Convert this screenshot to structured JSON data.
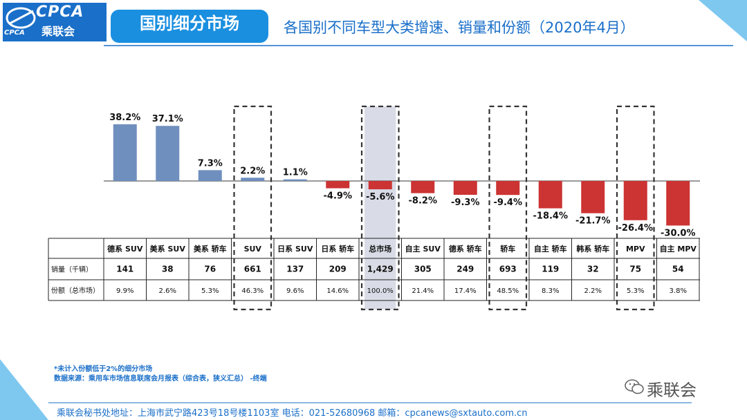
{
  "header": {
    "logo_text": "CPCA",
    "logo_cn": "乘联会",
    "logo_abbr": "CPCA",
    "section_title": "国别细分市场",
    "subtitle": "各国别不同车型大类增速、销量和份额（2020年4月）"
  },
  "chart_data": {
    "type": "bar",
    "title": "各国别不同车型大类增速、销量和份额（2020年4月）",
    "categories": [
      "德系 SUV",
      "美系 SUV",
      "美系 轿车",
      "SUV",
      "日系 SUV",
      "日系 轿车",
      "总市场",
      "自主 SUV",
      "德系 轿车",
      "轿车",
      "自主 轿车",
      "韩系 轿车",
      "MPV",
      "自主 MPV"
    ],
    "value_labels": [
      "38.2%",
      "37.1%",
      "7.3%",
      "2.2%",
      "1.1%",
      "-4.9%",
      "-5.6%",
      "-8.2%",
      "-9.3%",
      "-9.4%",
      "-18.4%",
      "-21.7%",
      "-26.4%",
      "-30.0%"
    ],
    "series": [
      {
        "values": [
          38.2,
          37.1,
          7.3,
          2.2,
          1.1,
          -4.9,
          -5.6,
          -8.2,
          -9.3,
          -9.4,
          -18.4,
          -21.7,
          -26.4,
          -30.0
        ]
      }
    ],
    "positive_color": "#6f8fbe",
    "negative_color": "#cc3333",
    "highlight_columns": [
      3,
      6,
      9,
      12
    ],
    "shaded_column": 6,
    "ylim": [
      -30,
      40
    ],
    "table": {
      "rows": [
        {
          "label": "销量（千辆）",
          "values": [
            "141",
            "38",
            "76",
            "661",
            "137",
            "209",
            "1,429",
            "305",
            "249",
            "693",
            "119",
            "32",
            "75",
            "54"
          ]
        },
        {
          "label": "份额（总市场）",
          "values": [
            "9.9%",
            "2.6%",
            "5.3%",
            "46.3%",
            "9.6%",
            "14.6%",
            "100.0%",
            "21.4%",
            "17.4%",
            "48.5%",
            "8.3%",
            "2.2%",
            "5.3%",
            "3.8%"
          ]
        }
      ]
    }
  },
  "notes": {
    "note1": "*未计入份额低于2%的细分市场",
    "note2": "数据来源：乘用车市场信息联席会月报表（综合表，狭义汇总）   -终端"
  },
  "watermark": "乘联会",
  "footer": "乘联会秘书处地址：上海市武宁路423号18号楼1103室  电话：021-52680968   邮箱：cpcanews@sxtauto.com.cn",
  "colors": {
    "brand_blue": "#1a6fc9",
    "accent_light": "#7ec8f0"
  }
}
